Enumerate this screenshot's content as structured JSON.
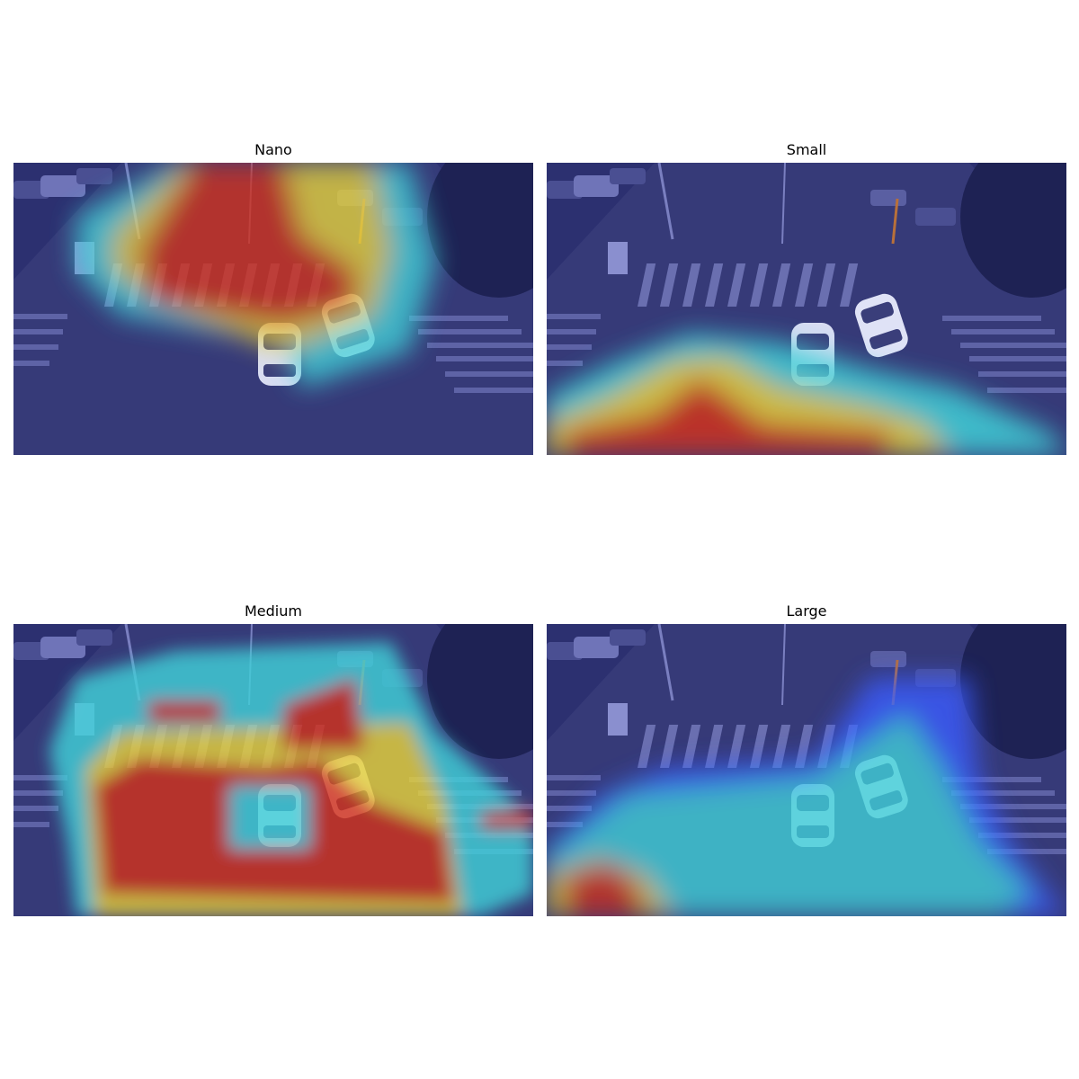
{
  "panels": [
    {
      "title": "Nano"
    },
    {
      "title": "Small"
    },
    {
      "title": "Medium"
    },
    {
      "title": "Large"
    }
  ],
  "colors": {
    "scene_base": "#2b2f6e",
    "cold": "#2a2f8f",
    "blue": "#3a5cff",
    "cyan": "#3fd0d8",
    "yellow": "#e6d23a",
    "red": "#d2301e"
  }
}
